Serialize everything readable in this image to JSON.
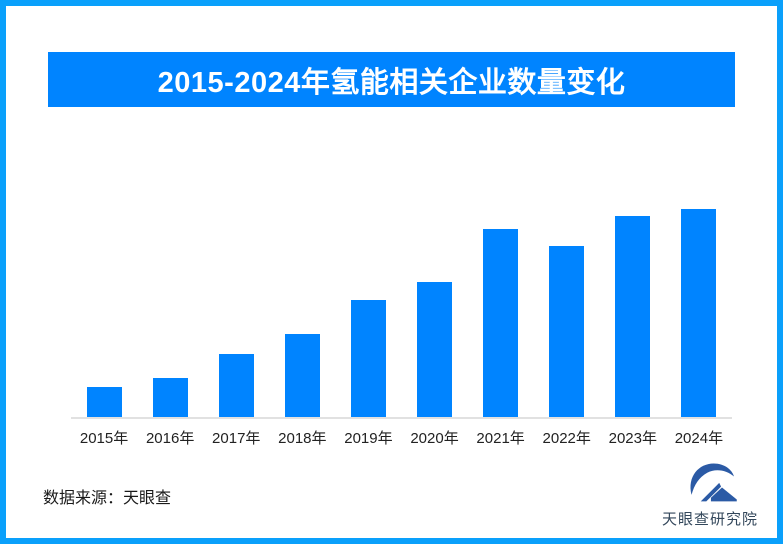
{
  "page": {
    "background": "#ffffff",
    "border_color": "#0aa0fb"
  },
  "title_banner": {
    "text": "2015-2024年氢能相关企业数量变化",
    "background": "#0084ff",
    "text_color": "#ffffff"
  },
  "chart_data": {
    "type": "bar",
    "title": "2015-2024年氢能相关企业数量变化",
    "categories": [
      "2015年",
      "2016年",
      "2017年",
      "2018年",
      "2019年",
      "2020年",
      "2021年",
      "2022年",
      "2023年",
      "2024年"
    ],
    "values": [
      14.4,
      18.9,
      30.1,
      39.9,
      56.3,
      64.9,
      90.6,
      82.0,
      96.8,
      100
    ],
    "values_note": "柱体无数值标签与数值轴；values 为相对柱高（最高柱 2024年 = 100）",
    "bar_color": "#0084ff",
    "axis_line_color": "#e1e1e1",
    "tick_label_color": "#222222",
    "xlabel": "",
    "ylabel": "",
    "grid": false,
    "legend": false,
    "ylim_relative": [
      0,
      100
    ]
  },
  "footer": {
    "source_label": "数据来源：天眼查"
  },
  "logo": {
    "icon": "tianyancha-logo",
    "text": "天眼查研究院",
    "mark_color": "#2b5aa5",
    "text_color": "#33475b"
  }
}
